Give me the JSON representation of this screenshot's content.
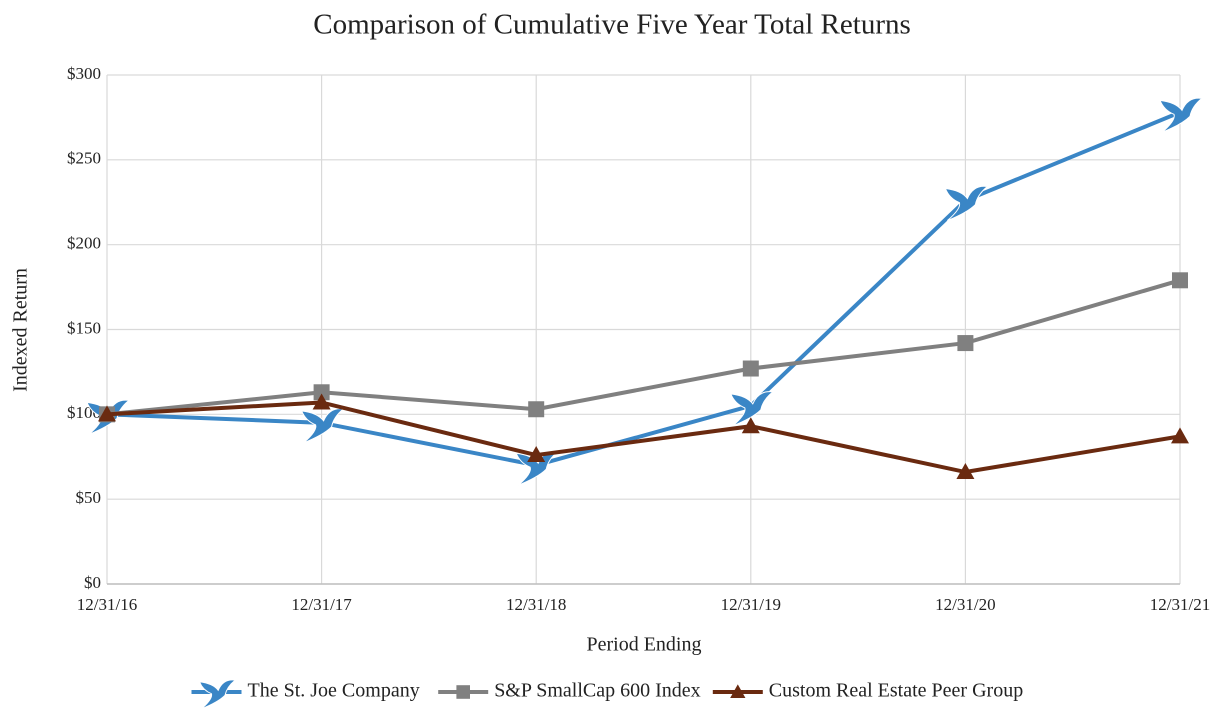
{
  "chart_data": {
    "type": "line",
    "title": "Comparison  of Cumulative  Five Year Total Returns",
    "x_label": "Period Ending",
    "y_label": "Indexed Return",
    "categories": [
      "12/31/16",
      "12/31/17",
      "12/31/18",
      "12/31/19",
      "12/31/20",
      "12/31/21"
    ],
    "series": [
      {
        "name": "The St. Joe Company",
        "color": "#3a86c6",
        "marker": "bird",
        "values": [
          100,
          95,
          70,
          105,
          226,
          278
        ]
      },
      {
        "name": "S&P SmallCap 600 Index",
        "color": "#808080",
        "marker": "square",
        "values": [
          100,
          113,
          103,
          127,
          142,
          179
        ]
      },
      {
        "name": "Custom Real Estate Peer Group",
        "color": "#6a2a10",
        "marker": "triangle",
        "values": [
          100,
          107,
          76,
          93,
          66,
          87
        ]
      }
    ],
    "ylim": [
      0,
      300
    ],
    "yticks": [
      {
        "value": 0,
        "label": "$0"
      },
      {
        "value": 50,
        "label": "$50"
      },
      {
        "value": 100,
        "label": "$100"
      },
      {
        "value": 150,
        "label": "$150"
      },
      {
        "value": 200,
        "label": "$200"
      },
      {
        "value": 250,
        "label": "$250"
      },
      {
        "value": 300,
        "label": "$300"
      }
    ],
    "grid": true,
    "legend": "bottom"
  }
}
